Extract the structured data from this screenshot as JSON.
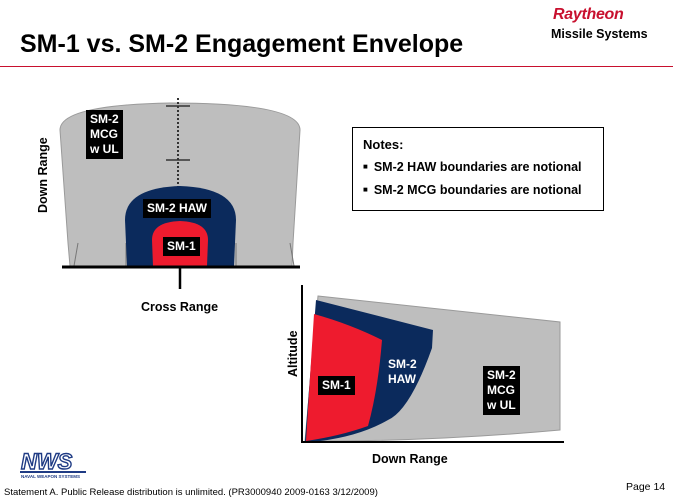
{
  "slide": {
    "title": "SM-1 vs. SM-2 Engagement Envelope",
    "logo": {
      "brand": "Raytheon",
      "division": "Missile Systems"
    },
    "notes": {
      "heading": "Notes:",
      "items": [
        "SM-2 HAW boundaries are notional",
        "SM-2 MCG boundaries are notional"
      ]
    },
    "footer": {
      "statement": "Statement A. Public Release distribution is unlimited. (PR3000940 2009-0163 3/12/2009)",
      "page": "Page 14",
      "nws_logo_text": "NWS",
      "nws_logo_subtext": "NAVAL WEAPON SYSTEMS"
    }
  },
  "plan_view": {
    "ylabel": "Down Range",
    "xlabel": "Cross Range",
    "regions": [
      {
        "label": "SM-2 MCG w UL",
        "lines": [
          "SM-2",
          "MCG",
          "w UL"
        ],
        "color": "#bebebe"
      },
      {
        "label": "SM-2 HAW",
        "color": "#0b2a5c"
      },
      {
        "label": "SM-1",
        "color": "#ee1b2e"
      }
    ]
  },
  "profile_view": {
    "ylabel": "Altitude",
    "xlabel": "Down Range",
    "regions": [
      {
        "label": "SM-1",
        "color": "#ee1b2e"
      },
      {
        "label": "SM-2 HAW",
        "lines": [
          "SM-2",
          "HAW"
        ],
        "color": "#0b2a5c"
      },
      {
        "label": "SM-2 MCG w UL",
        "lines": [
          "SM-2",
          "MCG",
          "w UL"
        ],
        "color": "#bebebe"
      }
    ]
  }
}
